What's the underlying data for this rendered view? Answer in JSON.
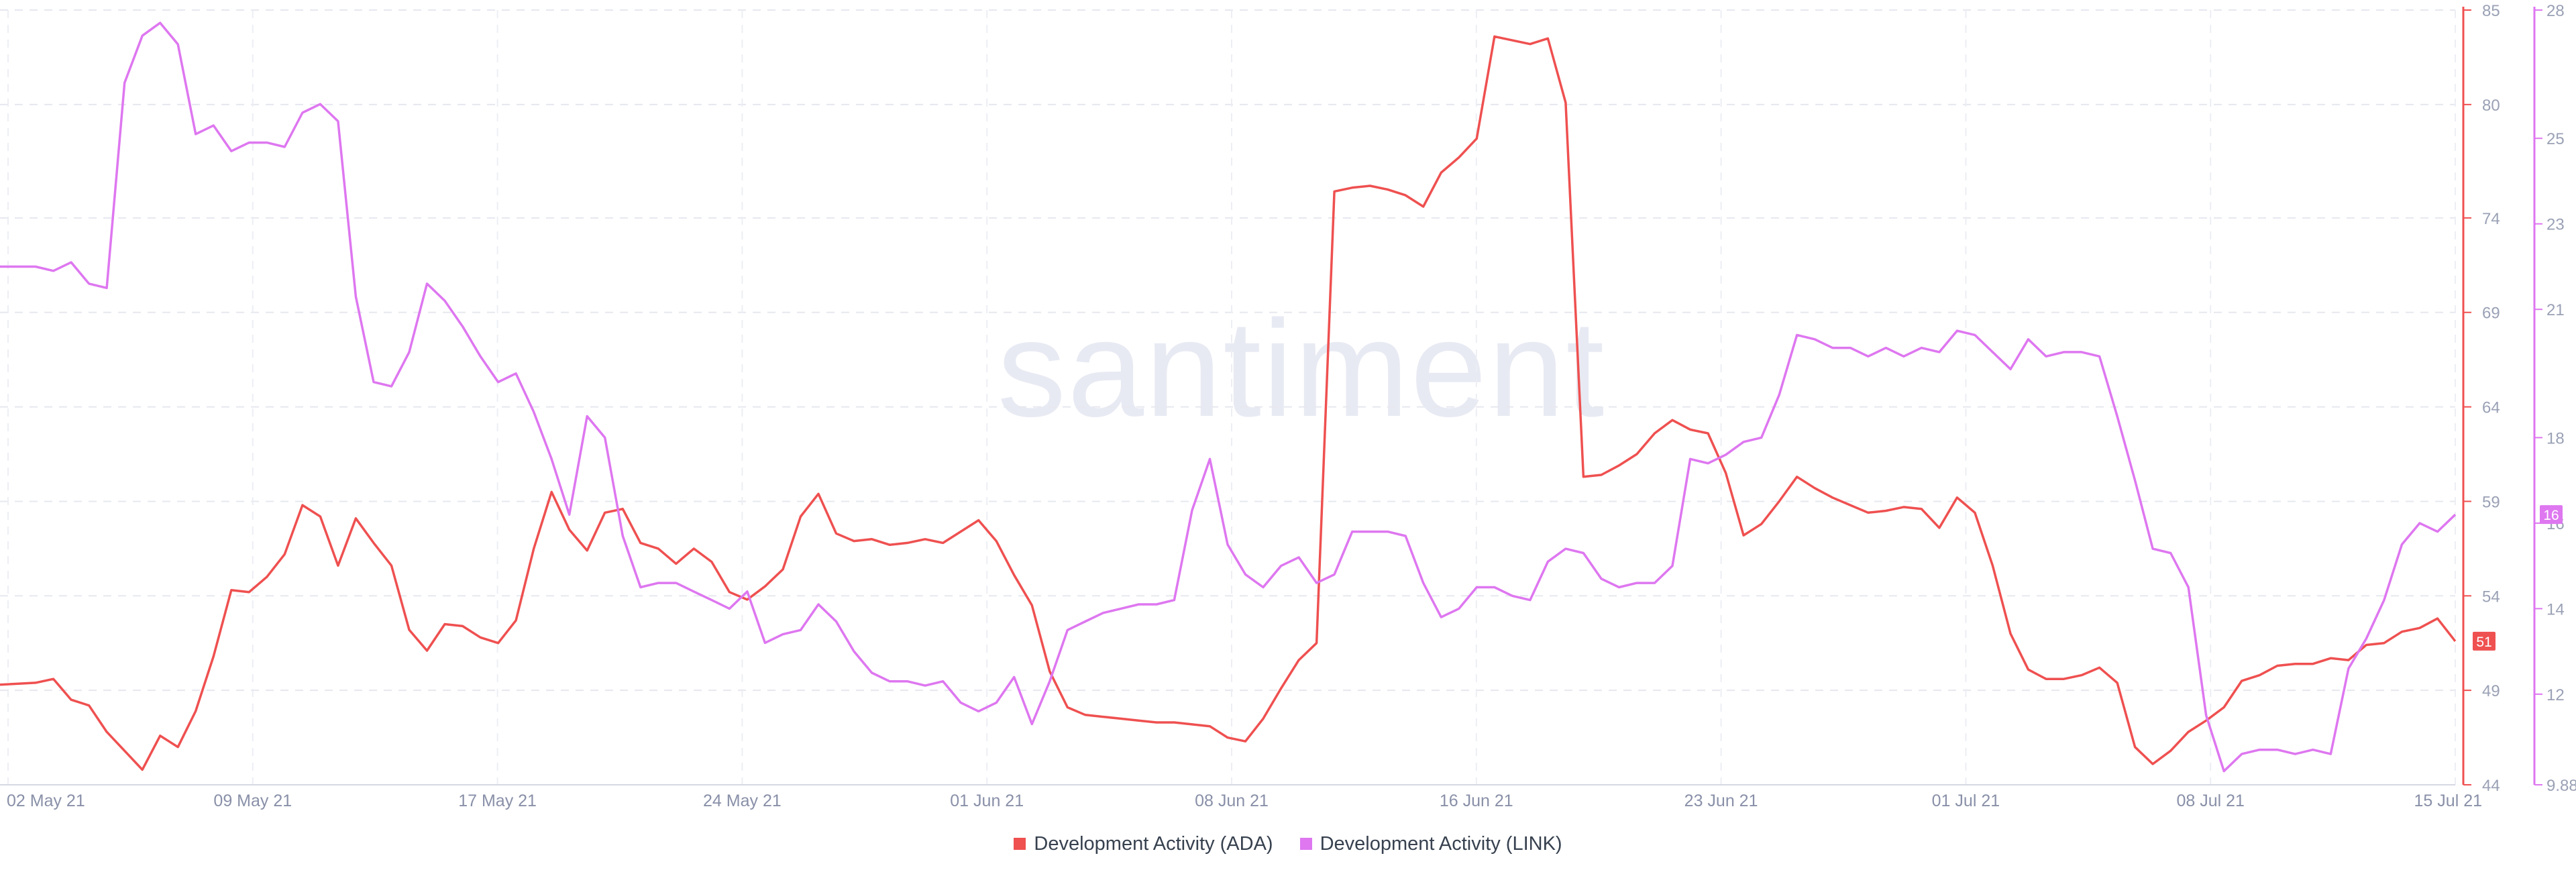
{
  "chart_data": {
    "type": "line",
    "watermark": "santiment",
    "x": [
      "02 May 21",
      "09 May 21",
      "17 May 21",
      "24 May 21",
      "01 Jun 21",
      "08 Jun 21",
      "16 Jun 21",
      "23 Jun 21",
      "01 Jul 21",
      "08 Jul 21",
      "15 Jul 21"
    ],
    "x_ticks": [
      "02 May 21",
      "09 May 21",
      "17 May 21",
      "24 May 21",
      "01 Jun 21",
      "08 Jun 21",
      "16 Jun 21",
      "23 Jun 21",
      "01 Jul 21",
      "08 Jul 21",
      "15 Jul 21"
    ],
    "y_left": {
      "ticks": [
        85,
        80,
        74,
        69,
        64,
        59,
        54,
        49,
        44
      ],
      "range": [
        44,
        85
      ],
      "color": "#ef5050"
    },
    "y_right": {
      "ticks": [
        28,
        25,
        23,
        21,
        18,
        16,
        14,
        12,
        9.88
      ],
      "range": [
        9.88,
        28
      ],
      "color": "#de77f0"
    },
    "grid": true,
    "legend_position": "bottom",
    "series": [
      {
        "name": "Development Activity (ADA)",
        "axis": "left",
        "color": "#ef5050",
        "current_label": "51",
        "values": [
          [
            0,
            49.3
          ],
          [
            1,
            49.4
          ],
          [
            1.5,
            49.6
          ],
          [
            2,
            48.5
          ],
          [
            2.5,
            48.2
          ],
          [
            3,
            46.8
          ],
          [
            3.5,
            45.8
          ],
          [
            4,
            44.8
          ],
          [
            4.5,
            46.6
          ],
          [
            5,
            46.0
          ],
          [
            5.5,
            47.9
          ],
          [
            6,
            50.8
          ],
          [
            6.5,
            54.3
          ],
          [
            7,
            54.2
          ],
          [
            7.5,
            55.0
          ],
          [
            8,
            56.2
          ],
          [
            8.5,
            58.8
          ],
          [
            9,
            58.2
          ],
          [
            9.5,
            55.6
          ],
          [
            10,
            58.1
          ],
          [
            10.5,
            56.8
          ],
          [
            11,
            55.6
          ],
          [
            11.5,
            52.2
          ],
          [
            12,
            51.1
          ],
          [
            12.5,
            52.5
          ],
          [
            13,
            52.4
          ],
          [
            13.5,
            51.8
          ],
          [
            14,
            51.5
          ],
          [
            14.5,
            52.7
          ],
          [
            15,
            56.5
          ],
          [
            15.5,
            59.5
          ],
          [
            16,
            57.5
          ],
          [
            16.5,
            56.4
          ],
          [
            17,
            58.4
          ],
          [
            17.5,
            58.6
          ],
          [
            18,
            56.8
          ],
          [
            18.5,
            56.5
          ],
          [
            19,
            55.7
          ],
          [
            19.5,
            56.5
          ],
          [
            20,
            55.8
          ],
          [
            20.5,
            54.2
          ],
          [
            21,
            53.8
          ],
          [
            21.5,
            54.5
          ],
          [
            22,
            55.4
          ],
          [
            22.5,
            58.2
          ],
          [
            23,
            59.4
          ],
          [
            23.5,
            57.3
          ],
          [
            24,
            56.9
          ],
          [
            24.5,
            57.0
          ],
          [
            25,
            56.7
          ],
          [
            25.5,
            56.8
          ],
          [
            26,
            57.0
          ],
          [
            26.5,
            56.8
          ],
          [
            27,
            57.4
          ],
          [
            27.5,
            58.0
          ],
          [
            28,
            56.9
          ],
          [
            28.5,
            55.1
          ],
          [
            29,
            53.5
          ],
          [
            29.5,
            50.0
          ],
          [
            30,
            48.1
          ],
          [
            30.5,
            47.7
          ],
          [
            31,
            47.6
          ],
          [
            31.5,
            47.5
          ],
          [
            32,
            47.4
          ],
          [
            32.5,
            47.3
          ],
          [
            33,
            47.3
          ],
          [
            33.5,
            47.2
          ],
          [
            34,
            47.1
          ],
          [
            34.5,
            46.5
          ],
          [
            35,
            46.3
          ],
          [
            35.5,
            47.5
          ],
          [
            36,
            49.1
          ],
          [
            36.5,
            50.6
          ],
          [
            37,
            51.5
          ],
          [
            37.5,
            75.4
          ],
          [
            38,
            75.6
          ],
          [
            38.5,
            75.7
          ],
          [
            39,
            75.5
          ],
          [
            39.5,
            75.2
          ],
          [
            40,
            74.6
          ],
          [
            40.5,
            76.4
          ],
          [
            41,
            77.2
          ],
          [
            41.5,
            78.2
          ],
          [
            42,
            83.6
          ],
          [
            42.5,
            83.4
          ],
          [
            43,
            83.2
          ],
          [
            43.5,
            83.5
          ],
          [
            44,
            80.1
          ],
          [
            44.5,
            60.3
          ],
          [
            45,
            60.4
          ],
          [
            45.5,
            60.9
          ],
          [
            46,
            61.5
          ],
          [
            46.5,
            62.6
          ],
          [
            47,
            63.3
          ],
          [
            47.5,
            62.8
          ],
          [
            48,
            62.6
          ],
          [
            48.5,
            60.5
          ],
          [
            49,
            57.2
          ],
          [
            49.5,
            57.8
          ],
          [
            50,
            59.0
          ],
          [
            50.5,
            60.3
          ],
          [
            51,
            59.7
          ],
          [
            51.5,
            59.2
          ],
          [
            52,
            58.8
          ],
          [
            52.5,
            58.4
          ],
          [
            53,
            58.5
          ],
          [
            53.5,
            58.7
          ],
          [
            54,
            58.6
          ],
          [
            54.5,
            57.6
          ],
          [
            55,
            59.2
          ],
          [
            55.5,
            58.4
          ],
          [
            56,
            55.6
          ],
          [
            56.5,
            52.0
          ],
          [
            57,
            50.1
          ],
          [
            57.5,
            49.6
          ],
          [
            58,
            49.6
          ],
          [
            58.5,
            49.8
          ],
          [
            59,
            50.2
          ],
          [
            59.5,
            49.4
          ],
          [
            60,
            46.0
          ],
          [
            60.5,
            45.1
          ],
          [
            61,
            45.8
          ],
          [
            61.5,
            46.8
          ],
          [
            62,
            47.4
          ],
          [
            62.5,
            48.1
          ],
          [
            63,
            49.5
          ],
          [
            63.5,
            49.8
          ],
          [
            64,
            50.3
          ],
          [
            64.5,
            50.4
          ],
          [
            65,
            50.4
          ],
          [
            65.5,
            50.7
          ],
          [
            66,
            50.6
          ],
          [
            66.5,
            51.4
          ],
          [
            67,
            51.5
          ],
          [
            67.5,
            52.1
          ],
          [
            68,
            52.3
          ],
          [
            68.5,
            52.8
          ],
          [
            69,
            51.6
          ]
        ]
      },
      {
        "name": "Development Activity (LINK)",
        "axis": "right",
        "color": "#de77f0",
        "current_label": "16",
        "values": [
          [
            0,
            22.0
          ],
          [
            1,
            22.0
          ],
          [
            1.5,
            21.9
          ],
          [
            2,
            22.1
          ],
          [
            2.5,
            21.6
          ],
          [
            3,
            21.5
          ],
          [
            3.5,
            26.3
          ],
          [
            4,
            27.4
          ],
          [
            4.5,
            27.7
          ],
          [
            5,
            27.2
          ],
          [
            5.5,
            25.1
          ],
          [
            6,
            25.3
          ],
          [
            6.5,
            24.7
          ],
          [
            7,
            24.9
          ],
          [
            7.5,
            24.9
          ],
          [
            8,
            24.8
          ],
          [
            8.5,
            25.6
          ],
          [
            9,
            25.8
          ],
          [
            9.5,
            25.4
          ],
          [
            10,
            21.3
          ],
          [
            10.5,
            19.3
          ],
          [
            11,
            19.2
          ],
          [
            11.5,
            20.0
          ],
          [
            12,
            21.6
          ],
          [
            12.5,
            21.2
          ],
          [
            13,
            20.6
          ],
          [
            13.5,
            19.9
          ],
          [
            14,
            19.3
          ],
          [
            14.5,
            19.5
          ],
          [
            15,
            18.6
          ],
          [
            15.5,
            17.5
          ],
          [
            16,
            16.2
          ],
          [
            16.5,
            18.5
          ],
          [
            17,
            18.0
          ],
          [
            17.5,
            15.7
          ],
          [
            18,
            14.5
          ],
          [
            18.5,
            14.6
          ],
          [
            19,
            14.6
          ],
          [
            19.5,
            14.4
          ],
          [
            20,
            14.2
          ],
          [
            20.5,
            14.0
          ],
          [
            21,
            14.4
          ],
          [
            21.5,
            13.2
          ],
          [
            22,
            13.4
          ],
          [
            22.5,
            13.5
          ],
          [
            23,
            14.1
          ],
          [
            23.5,
            13.7
          ],
          [
            24,
            13.0
          ],
          [
            24.5,
            12.5
          ],
          [
            25,
            12.3
          ],
          [
            25.5,
            12.3
          ],
          [
            26,
            12.2
          ],
          [
            26.5,
            12.3
          ],
          [
            27,
            11.8
          ],
          [
            27.5,
            11.6
          ],
          [
            28,
            11.8
          ],
          [
            28.5,
            12.4
          ],
          [
            29,
            11.3
          ],
          [
            29.5,
            12.3
          ],
          [
            30,
            13.5
          ],
          [
            30.5,
            13.7
          ],
          [
            31,
            13.9
          ],
          [
            31.5,
            14.0
          ],
          [
            32,
            14.1
          ],
          [
            32.5,
            14.1
          ],
          [
            33,
            14.2
          ],
          [
            33.5,
            16.3
          ],
          [
            34,
            17.5
          ],
          [
            34.5,
            15.5
          ],
          [
            35,
            14.8
          ],
          [
            35.5,
            14.5
          ],
          [
            36,
            15.0
          ],
          [
            36.5,
            15.2
          ],
          [
            37,
            14.6
          ],
          [
            37.5,
            14.8
          ],
          [
            38,
            15.8
          ],
          [
            38.5,
            15.8
          ],
          [
            39,
            15.8
          ],
          [
            39.5,
            15.7
          ],
          [
            40,
            14.6
          ],
          [
            40.5,
            13.8
          ],
          [
            41,
            14.0
          ],
          [
            41.5,
            14.5
          ],
          [
            42,
            14.5
          ],
          [
            42.5,
            14.3
          ],
          [
            43,
            14.2
          ],
          [
            43.5,
            15.1
          ],
          [
            44,
            15.4
          ],
          [
            44.5,
            15.3
          ],
          [
            45,
            14.7
          ],
          [
            45.5,
            14.5
          ],
          [
            46,
            14.6
          ],
          [
            46.5,
            14.6
          ],
          [
            47,
            15.0
          ],
          [
            47.5,
            17.5
          ],
          [
            48,
            17.4
          ],
          [
            48.5,
            17.6
          ],
          [
            49,
            17.9
          ],
          [
            49.5,
            18.0
          ],
          [
            50,
            19.0
          ],
          [
            50.5,
            20.4
          ],
          [
            51,
            20.3
          ],
          [
            51.5,
            20.1
          ],
          [
            52,
            20.1
          ],
          [
            52.5,
            19.9
          ],
          [
            53,
            20.1
          ],
          [
            53.5,
            19.9
          ],
          [
            54,
            20.1
          ],
          [
            54.5,
            20.0
          ],
          [
            55,
            20.5
          ],
          [
            55.5,
            20.4
          ],
          [
            56,
            20.0
          ],
          [
            56.5,
            19.6
          ],
          [
            57,
            20.3
          ],
          [
            57.5,
            19.9
          ],
          [
            58,
            20.0
          ],
          [
            58.5,
            20.0
          ],
          [
            59,
            19.9
          ],
          [
            59.5,
            18.5
          ],
          [
            60,
            17.0
          ],
          [
            60.5,
            15.4
          ],
          [
            61,
            15.3
          ],
          [
            61.5,
            14.5
          ],
          [
            62,
            11.5
          ],
          [
            62.5,
            10.2
          ],
          [
            63,
            10.6
          ],
          [
            63.5,
            10.7
          ],
          [
            64,
            10.7
          ],
          [
            64.5,
            10.6
          ],
          [
            65,
            10.7
          ],
          [
            65.5,
            10.6
          ],
          [
            66,
            12.6
          ],
          [
            66.5,
            13.3
          ],
          [
            67,
            14.2
          ],
          [
            67.5,
            15.5
          ],
          [
            68,
            16.0
          ],
          [
            68.5,
            15.8
          ],
          [
            69,
            16.2
          ]
        ]
      }
    ]
  }
}
